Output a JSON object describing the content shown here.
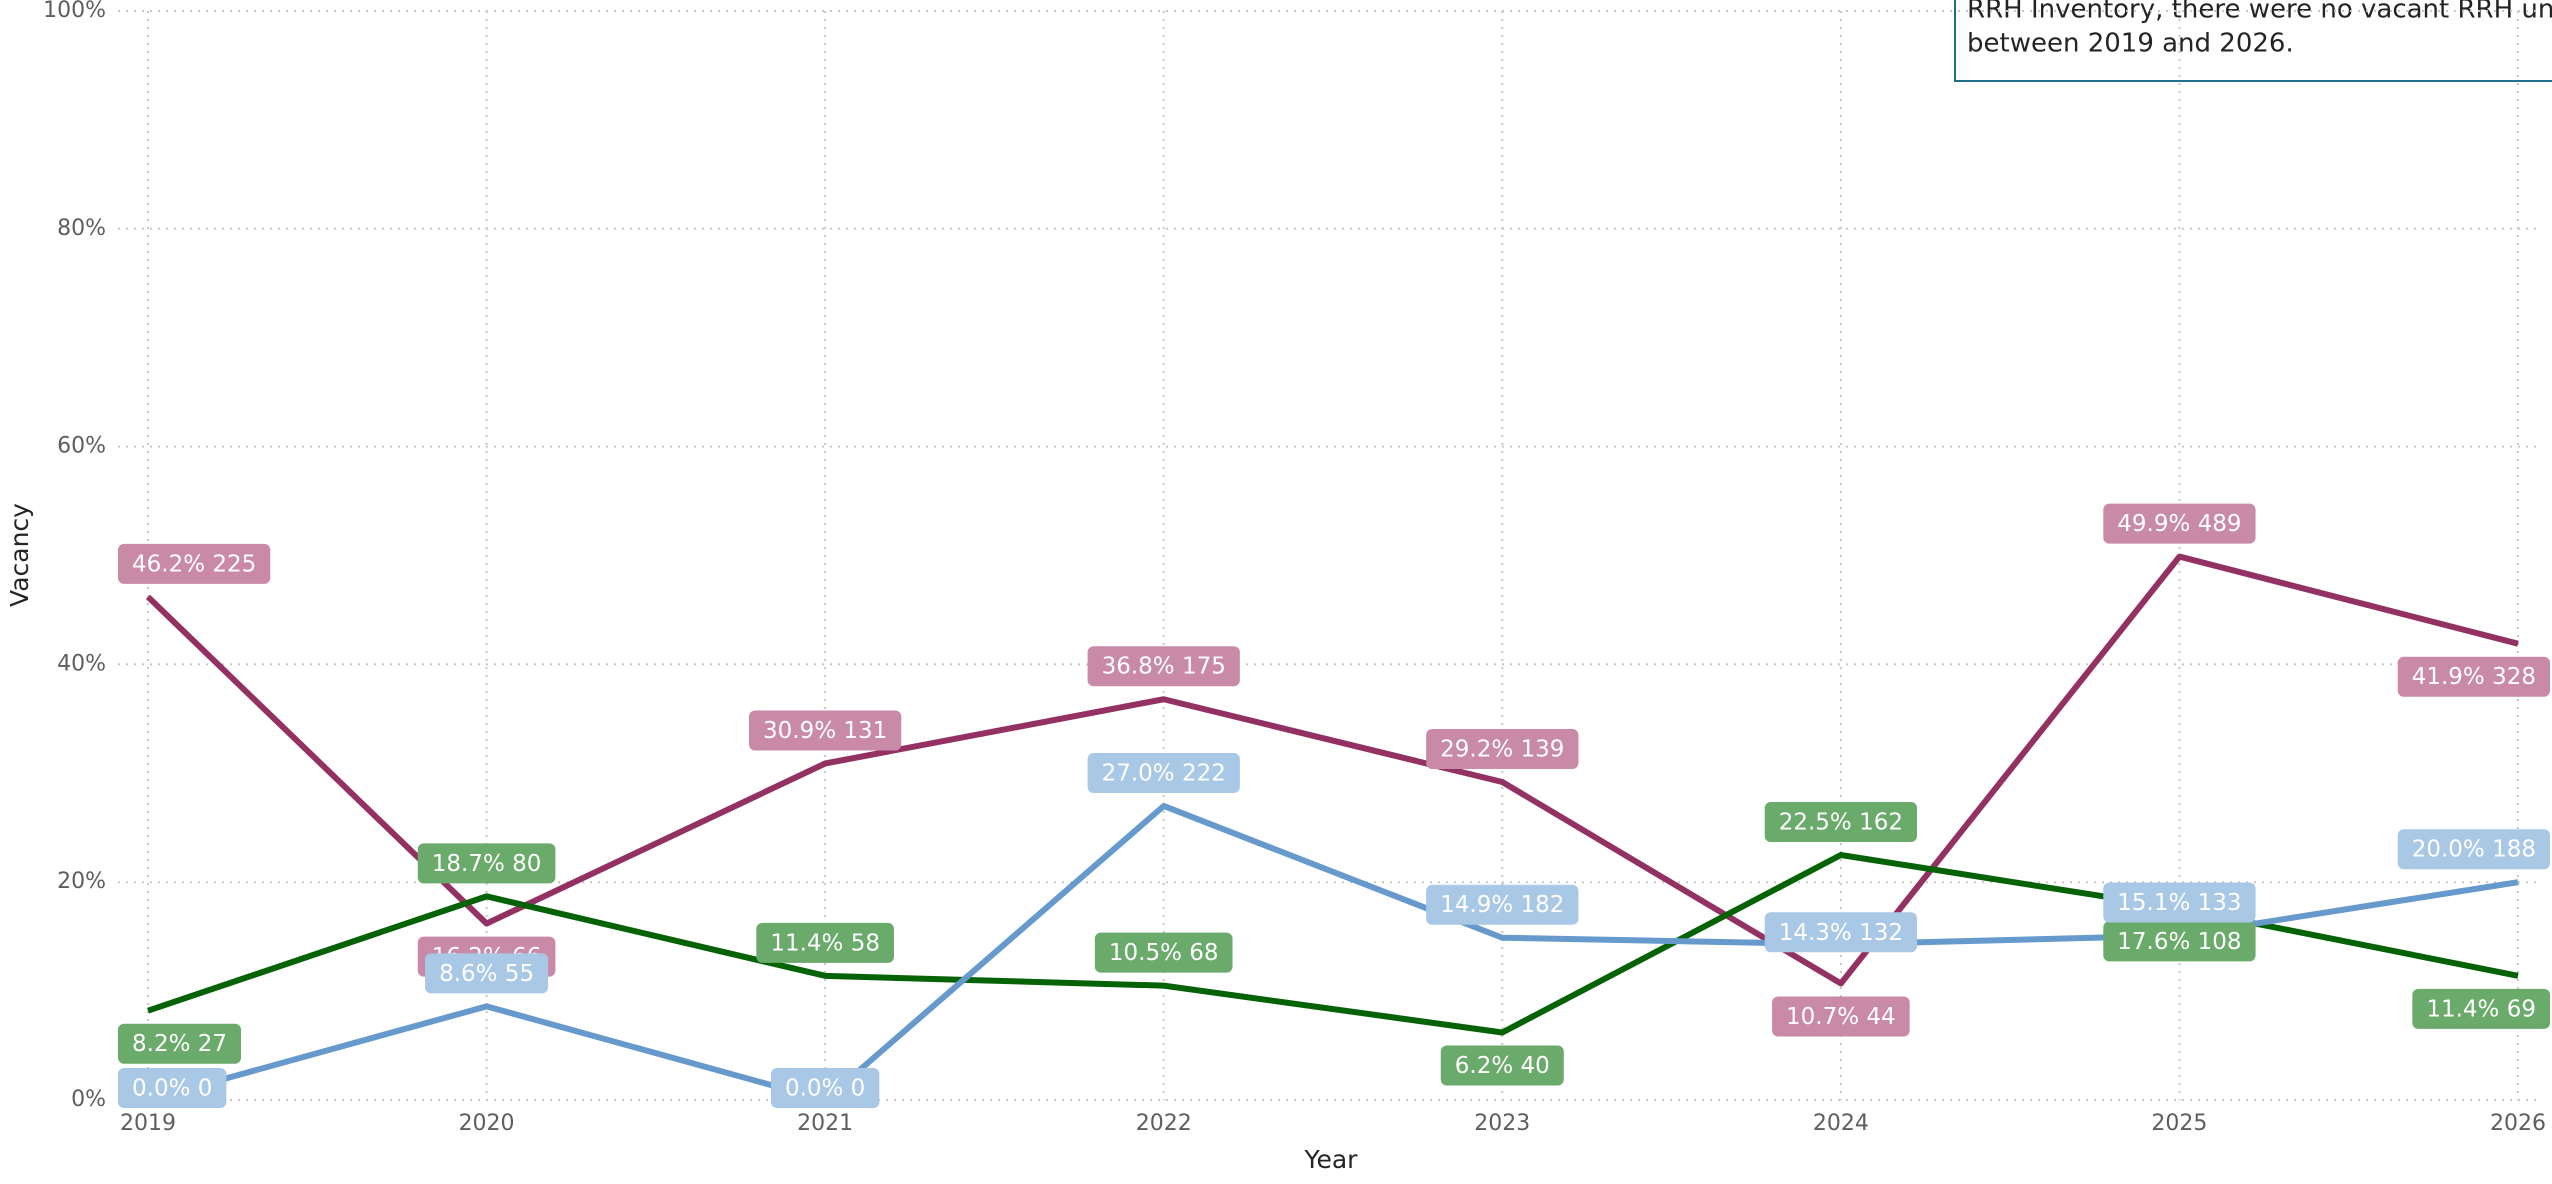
{
  "chart_data": {
    "type": "line",
    "x_label": "Year",
    "y_label": "Vacancy",
    "annotation": [
      "RRH Inventory, there were no vacant RRH units",
      "between 2019 and 2026."
    ],
    "x": [
      2019,
      2020,
      2021,
      2022,
      2023,
      2024,
      2025,
      2026
    ],
    "xlim": [
      2019,
      2026
    ],
    "xticks": [
      2019,
      2020,
      2021,
      2022,
      2023,
      2024,
      2025,
      2026
    ],
    "ylim": [
      0,
      100
    ],
    "yticks": [
      {
        "value": 0,
        "label": "0%"
      },
      {
        "value": 20,
        "label": "20%"
      },
      {
        "value": 40,
        "label": "40%"
      },
      {
        "value": 60,
        "label": "60%"
      },
      {
        "value": 80,
        "label": "80%"
      },
      {
        "value": 100,
        "label": "100%"
      }
    ],
    "grid": true,
    "series": [
      {
        "color": "#933262",
        "label_color": "#c98aa8",
        "values": [
          46.2,
          16.2,
          30.9,
          36.8,
          29.2,
          10.7,
          49.9,
          41.9
        ],
        "value_labels": [
          "46.2% 225",
          "16.2% 66",
          "30.9% 131",
          "36.8% 175",
          "29.2% 139",
          "10.7% 44",
          "49.9% 489",
          "41.9% 328"
        ]
      },
      {
        "color": "#056305",
        "label_color": "#6aaa6a",
        "values": [
          8.2,
          18.7,
          11.4,
          10.5,
          6.2,
          22.5,
          17.6,
          11.4
        ],
        "value_labels": [
          "8.2% 27",
          "18.7% 80",
          "11.4% 58",
          "10.5% 68",
          "6.2% 40",
          "22.5% 162",
          "17.6% 108",
          "11.4% 69"
        ]
      },
      {
        "color": "#6699cc",
        "label_color": "#a9c8e6",
        "values": [
          0.0,
          8.6,
          0.0,
          27.0,
          14.9,
          14.3,
          15.1,
          20.0
        ],
        "value_labels": [
          "0.0% 0",
          "8.6% 55",
          "0.0% 0",
          "27.0% 222",
          "14.9% 182",
          "14.3% 132",
          "15.1% 133",
          "20.0% 188"
        ]
      }
    ]
  }
}
